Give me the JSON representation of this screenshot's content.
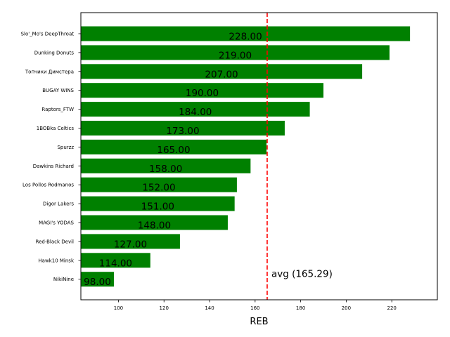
{
  "chart_data": {
    "type": "bar",
    "orientation": "horizontal",
    "categories": [
      "Slo'_Mo's DeepThroat",
      "Dunking Donuts",
      "Топчики Димстера",
      "BUGAY WINS",
      "Raptors_FTW",
      "1BOBka Celtics",
      "Spurzz",
      "Dawkins Richard",
      "Los Pollos Rodmanos",
      "Digor Lakers",
      "MAGI's YODAS",
      "Red-Black Devil",
      "Hawk10 Minsk",
      "NikiNine"
    ],
    "values": [
      228,
      219,
      207,
      190,
      184,
      173,
      165,
      158,
      152,
      151,
      148,
      127,
      114,
      98
    ],
    "value_labels": [
      "228.00",
      "219.00",
      "207.00",
      "190.00",
      "184.00",
      "173.00",
      "165.00",
      "158.00",
      "152.00",
      "151.00",
      "148.00",
      "127.00",
      "114.00",
      "98.00"
    ],
    "bar_color": "#008000",
    "xlabel": "REB",
    "ylabel": "",
    "title": "",
    "xlim": [
      83.5,
      240
    ],
    "xticks": [
      100,
      120,
      140,
      160,
      180,
      200,
      220
    ],
    "xtick_labels": [
      "100",
      "120",
      "140",
      "160",
      "180",
      "200",
      "220"
    ],
    "grid": false,
    "average": {
      "value": 165.29,
      "label": "avg (165.29)",
      "color": "#ff0000",
      "style": "dashed"
    }
  }
}
